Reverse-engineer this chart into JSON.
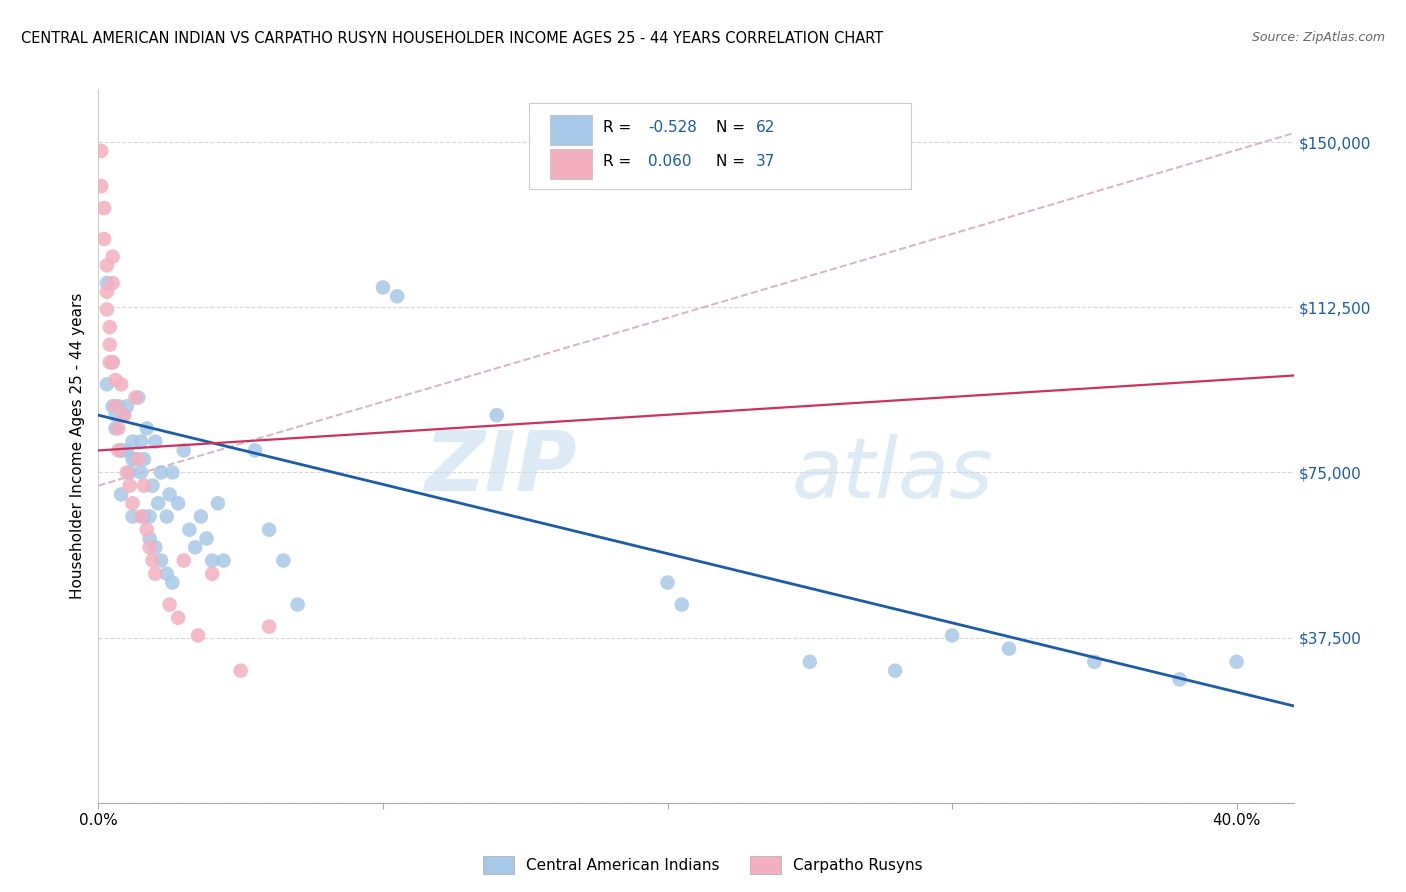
{
  "title": "CENTRAL AMERICAN INDIAN VS CARPATHO RUSYN HOUSEHOLDER INCOME AGES 25 - 44 YEARS CORRELATION CHART",
  "source": "Source: ZipAtlas.com",
  "ylabel": "Householder Income Ages 25 - 44 years",
  "xlim": [
    0.0,
    0.42
  ],
  "ylim": [
    0,
    162000
  ],
  "ytick_vals": [
    0,
    37500,
    75000,
    112500,
    150000
  ],
  "ytick_labels": [
    "",
    "$37,500",
    "$75,000",
    "$112,500",
    "$150,000"
  ],
  "xtick_vals": [
    0.0,
    0.4
  ],
  "xtick_labels": [
    "0.0%",
    "40.0%"
  ],
  "blue_color": "#a8c8e8",
  "blue_line_color": "#1a5ca8",
  "pink_color": "#f4b0c0",
  "pink_line_color": "#d03060",
  "dashed_color": "#d0a0b8",
  "blue_x": [
    0.003,
    0.005,
    0.006,
    0.007,
    0.008,
    0.009,
    0.01,
    0.011,
    0.012,
    0.013,
    0.014,
    0.015,
    0.016,
    0.017,
    0.018,
    0.019,
    0.02,
    0.021,
    0.022,
    0.024,
    0.025,
    0.026,
    0.028,
    0.03,
    0.032,
    0.034,
    0.036,
    0.038,
    0.04,
    0.042,
    0.044,
    0.055,
    0.06,
    0.065,
    0.07,
    0.1,
    0.105,
    0.14,
    0.2,
    0.205,
    0.25,
    0.28,
    0.3,
    0.32,
    0.35,
    0.38,
    0.4,
    0.003,
    0.005,
    0.006,
    0.008,
    0.01,
    0.012,
    0.015,
    0.008,
    0.012,
    0.016,
    0.018,
    0.02,
    0.022,
    0.024,
    0.026
  ],
  "blue_y": [
    118000,
    100000,
    88000,
    90000,
    80000,
    88000,
    90000,
    75000,
    82000,
    78000,
    92000,
    82000,
    78000,
    85000,
    65000,
    72000,
    82000,
    68000,
    75000,
    65000,
    70000,
    75000,
    68000,
    80000,
    62000,
    58000,
    65000,
    60000,
    55000,
    68000,
    55000,
    80000,
    62000,
    55000,
    45000,
    117000,
    115000,
    88000,
    50000,
    45000,
    32000,
    30000,
    38000,
    35000,
    32000,
    28000,
    32000,
    95000,
    90000,
    85000,
    80000,
    80000,
    78000,
    75000,
    70000,
    65000,
    65000,
    60000,
    58000,
    55000,
    52000,
    50000
  ],
  "pink_x": [
    0.001,
    0.001,
    0.002,
    0.002,
    0.003,
    0.003,
    0.003,
    0.004,
    0.004,
    0.004,
    0.005,
    0.005,
    0.005,
    0.006,
    0.006,
    0.007,
    0.007,
    0.008,
    0.009,
    0.01,
    0.011,
    0.012,
    0.013,
    0.014,
    0.015,
    0.016,
    0.017,
    0.018,
    0.019,
    0.02,
    0.025,
    0.028,
    0.03,
    0.035,
    0.04,
    0.05,
    0.06
  ],
  "pink_y": [
    148000,
    140000,
    135000,
    128000,
    122000,
    116000,
    112000,
    108000,
    104000,
    100000,
    124000,
    118000,
    100000,
    96000,
    90000,
    85000,
    80000,
    95000,
    88000,
    75000,
    72000,
    68000,
    92000,
    78000,
    65000,
    72000,
    62000,
    58000,
    55000,
    52000,
    45000,
    42000,
    55000,
    38000,
    52000,
    30000,
    40000
  ],
  "blue_trend_x": [
    0.0,
    0.42
  ],
  "blue_trend_y": [
    88000,
    22000
  ],
  "pink_trend_x": [
    0.0,
    0.42
  ],
  "pink_trend_y": [
    80000,
    97000
  ],
  "dashed_trend_x": [
    0.0,
    0.42
  ],
  "dashed_trend_y": [
    72000,
    152000
  ],
  "legend_blue_r": "-0.528",
  "legend_blue_n": "62",
  "legend_pink_r": "0.060",
  "legend_pink_n": "37",
  "bottom_legend": [
    "Central American Indians",
    "Carpatho Rusyns"
  ],
  "r_label_color": "#1a5ca8",
  "n_label_color": "#1a5ca8"
}
